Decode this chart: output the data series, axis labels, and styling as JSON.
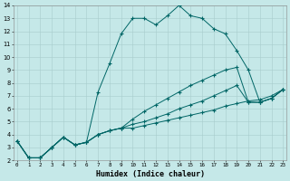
{
  "xlabel": "Humidex (Indice chaleur)",
  "bg_color": "#c5e8e8",
  "grid_color": "#a8cccc",
  "line_color": "#006666",
  "xlim": [
    -0.3,
    23.3
  ],
  "ylim": [
    2,
    14
  ],
  "xticks": [
    0,
    1,
    2,
    3,
    4,
    5,
    6,
    7,
    8,
    9,
    10,
    11,
    12,
    13,
    14,
    15,
    16,
    17,
    18,
    19,
    20,
    21,
    22,
    23
  ],
  "yticks": [
    2,
    3,
    4,
    5,
    6,
    7,
    8,
    9,
    10,
    11,
    12,
    13,
    14
  ],
  "line1_x": [
    0,
    1,
    2,
    3,
    4,
    5,
    6,
    7,
    8,
    9,
    10,
    11,
    12,
    13,
    14,
    15,
    16,
    17,
    18,
    19,
    20,
    21,
    22,
    23
  ],
  "line1_y": [
    3.5,
    2.2,
    2.2,
    3.0,
    3.8,
    3.2,
    3.4,
    7.3,
    9.5,
    11.8,
    13.0,
    13.0,
    12.5,
    13.2,
    14.0,
    13.2,
    13.0,
    12.2,
    11.8,
    10.5,
    9.0,
    6.5,
    6.8,
    7.5
  ],
  "line2_x": [
    0,
    1,
    2,
    3,
    4,
    5,
    6,
    7,
    8,
    9,
    10,
    11,
    12,
    13,
    14,
    15,
    16,
    17,
    18,
    19,
    20,
    21,
    22,
    23
  ],
  "line2_y": [
    3.5,
    2.2,
    2.2,
    3.0,
    3.8,
    3.2,
    3.4,
    4.0,
    4.3,
    4.5,
    4.8,
    5.0,
    5.3,
    5.6,
    6.0,
    6.3,
    6.6,
    7.0,
    7.4,
    7.8,
    6.5,
    6.5,
    6.8,
    7.5
  ],
  "line3_x": [
    0,
    1,
    2,
    3,
    4,
    5,
    6,
    7,
    8,
    9,
    10,
    11,
    12,
    13,
    14,
    15,
    16,
    17,
    18,
    19,
    20,
    21,
    22,
    23
  ],
  "line3_y": [
    3.5,
    2.2,
    2.2,
    3.0,
    3.8,
    3.2,
    3.4,
    4.0,
    4.3,
    4.5,
    5.2,
    5.8,
    6.3,
    6.8,
    7.3,
    7.8,
    8.2,
    8.6,
    9.0,
    9.2,
    6.5,
    6.5,
    6.8,
    7.5
  ],
  "line4_x": [
    0,
    1,
    2,
    3,
    4,
    5,
    6,
    7,
    8,
    9,
    10,
    11,
    12,
    13,
    14,
    15,
    16,
    17,
    18,
    19,
    20,
    21,
    22,
    23
  ],
  "line4_y": [
    3.5,
    2.2,
    2.2,
    3.0,
    3.8,
    3.2,
    3.4,
    4.0,
    4.3,
    4.5,
    4.5,
    4.7,
    4.9,
    5.1,
    5.3,
    5.5,
    5.7,
    5.9,
    6.2,
    6.4,
    6.6,
    6.7,
    7.0,
    7.5
  ]
}
